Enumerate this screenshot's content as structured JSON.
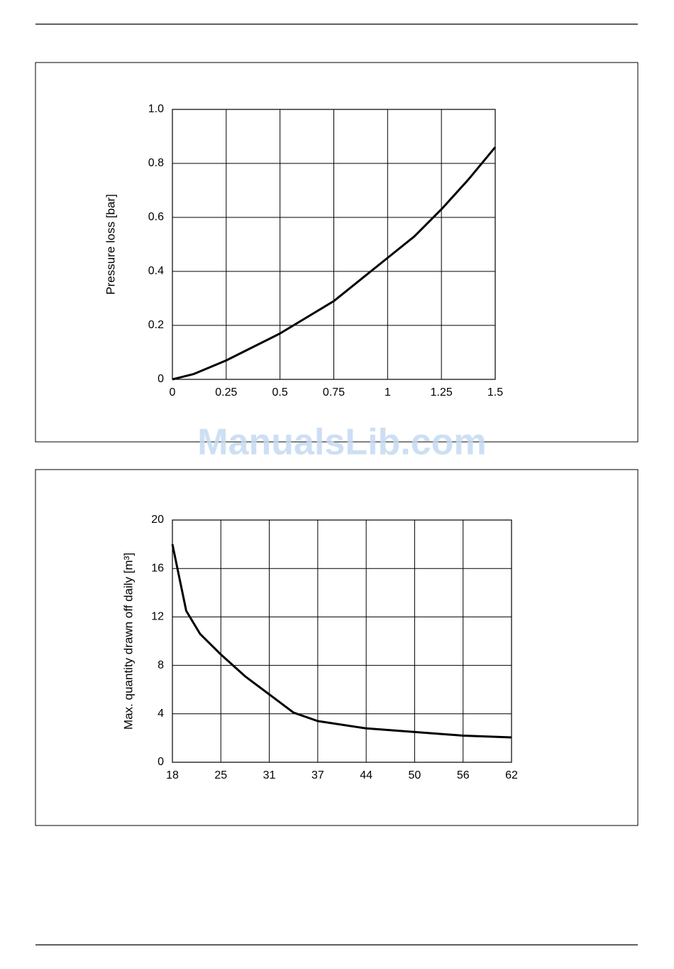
{
  "chart_data": [
    {
      "type": "line",
      "y_label": "Pressure loss [bar]",
      "x": [
        0,
        0.1,
        0.25,
        0.375,
        0.5,
        0.625,
        0.75,
        0.875,
        1,
        1.125,
        1.25,
        1.375,
        1.5
      ],
      "values": [
        0,
        0.02,
        0.07,
        0.12,
        0.17,
        0.23,
        0.29,
        0.37,
        0.45,
        0.53,
        0.63,
        0.74,
        0.86
      ],
      "color": "#000000",
      "xlim": [
        0,
        1.5
      ],
      "xticks": [
        0,
        0.25,
        0.5,
        0.75,
        1,
        1.25,
        1.5
      ],
      "ylim": [
        0,
        1
      ],
      "yticks": [
        0,
        0.2,
        0.4,
        0.6,
        0.8,
        {
          "value": 1,
          "label": "1.0"
        }
      ],
      "grid": true
    },
    {
      "type": "line",
      "y_label": "Max. quantity drawn off daily [m³]",
      "x": [
        18,
        20,
        22,
        25,
        28,
        31,
        34,
        37,
        44,
        50,
        56,
        62
      ],
      "values": [
        18,
        12.5,
        10.6,
        8.9,
        7.1,
        5.6,
        4.1,
        3.4,
        2.8,
        2.5,
        2.2,
        2.05
      ],
      "color": "#000000",
      "xlim": [
        18,
        62
      ],
      "xticks": [
        18,
        25,
        31,
        37,
        44,
        50,
        56,
        62
      ],
      "ylim": [
        0,
        20
      ],
      "yticks": [
        0,
        4,
        8,
        12,
        16,
        20
      ],
      "grid": true
    }
  ],
  "watermark": "ManualsLib.com"
}
